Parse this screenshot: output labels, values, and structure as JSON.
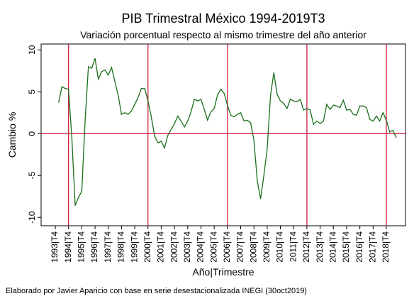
{
  "chart_data": {
    "type": "line",
    "title": "PIB Trimestral México 1994-2019T3",
    "subtitle": "Variación porcentual respecto al mismo trimestre del año anterior",
    "x_label": "Año|Trimestre",
    "y_label": "Cambio %",
    "note": "Elaborado por Javier Aparicio con base en serie desestacionalizada INEGI (30oct2019)",
    "categories": [
      "1993|T4",
      null,
      null,
      null,
      "1994|T4",
      null,
      null,
      null,
      "1995|T4",
      null,
      null,
      null,
      "1996|T4",
      null,
      null,
      null,
      "1997|T4",
      null,
      null,
      null,
      "1998|T4",
      null,
      null,
      null,
      "1999|T4",
      null,
      null,
      null,
      "2000|T4",
      null,
      null,
      null,
      "2001|T4",
      null,
      null,
      null,
      "2002|T4",
      null,
      null,
      null,
      "2003|T4",
      null,
      null,
      null,
      "2004|T4",
      null,
      null,
      null,
      "2005|T4",
      null,
      null,
      null,
      "2006|T4",
      null,
      null,
      null,
      "2007|T4",
      null,
      null,
      null,
      "2008|T4",
      null,
      null,
      null,
      "2009|T4",
      null,
      null,
      null,
      "2010|T4",
      null,
      null,
      null,
      "2011|T4",
      null,
      null,
      null,
      "2012|T4",
      null,
      null,
      null,
      "2013|T4",
      null,
      null,
      null,
      "2014|T4",
      null,
      null,
      null,
      "2015|T4",
      null,
      null,
      null,
      "2016|T4",
      null,
      null,
      null,
      "2017|T4",
      null,
      null,
      null,
      "2018|T4",
      null,
      null,
      null
    ],
    "series": [
      {
        "name": "PIB",
        "color": "#1a6e1a",
        "values": [
          null,
          3.7,
          5.6,
          5.4,
          5.3,
          -0.5,
          -8.6,
          -7.6,
          -6.9,
          1.5,
          8.0,
          7.8,
          9.0,
          6.5,
          7.4,
          7.6,
          7.0,
          7.9,
          6.2,
          4.6,
          2.3,
          2.5,
          2.3,
          2.7,
          3.5,
          4.3,
          5.4,
          5.4,
          3.9,
          2.0,
          -0.3,
          -1.1,
          -0.9,
          -1.7,
          -0.2,
          0.5,
          1.2,
          2.1,
          1.5,
          0.8,
          1.5,
          2.6,
          4.1,
          3.9,
          4.1,
          2.9,
          1.6,
          2.6,
          3.0,
          4.6,
          5.3,
          4.8,
          3.4,
          2.2,
          2.0,
          2.3,
          2.5,
          1.5,
          1.6,
          1.3,
          -0.8,
          -5.6,
          -7.8,
          -5.0,
          -1.8,
          4.5,
          7.3,
          4.7,
          3.9,
          3.6,
          3.0,
          4.1,
          3.9,
          3.8,
          4.1,
          2.8,
          3.0,
          2.8,
          1.1,
          1.5,
          1.2,
          1.5,
          3.5,
          2.9,
          3.4,
          3.3,
          3.1,
          4.0,
          2.8,
          2.9,
          2.3,
          2.2,
          3.3,
          3.3,
          3.1,
          1.7,
          1.5,
          2.1,
          1.5,
          2.5,
          1.6,
          0.2,
          0.4,
          -0.5
        ]
      }
    ],
    "ylim": [
      -11,
      10.7
    ],
    "yticks": [
      -10,
      -5,
      0,
      5,
      10
    ],
    "reference_x": [
      "1994|T4",
      "2000|T4",
      "2006|T4",
      "2012|T4",
      "2018|T4"
    ],
    "reference_y": 0,
    "reference_color": "#c8102e"
  }
}
